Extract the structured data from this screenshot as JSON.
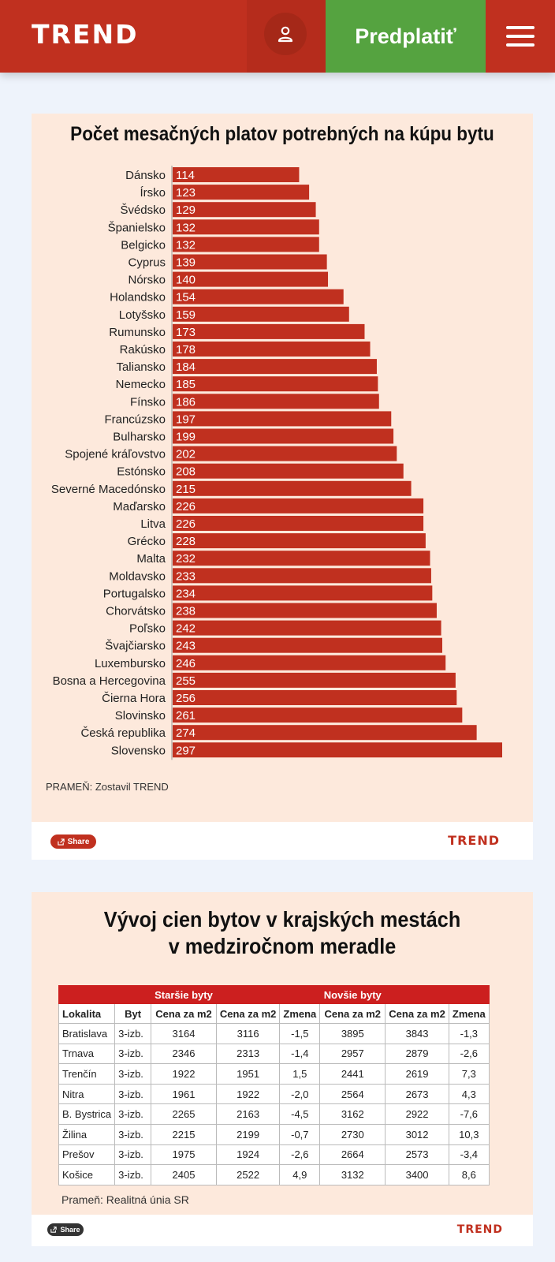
{
  "header": {
    "logo": "TREND",
    "subscribe_label": "Predplatiť",
    "user_icon": "user-icon",
    "menu_icon": "hamburger-menu-icon"
  },
  "colors": {
    "brand_red": "#c0301f",
    "bar_red": "#c0301f",
    "subscribe_green": "#55a340"
  },
  "chart_data": [
    {
      "type": "bar",
      "orientation": "horizontal",
      "title": "Počet mesačných platov potrebných na kúpu bytu",
      "categories": [
        "Dánsko",
        "Írsko",
        "Švédsko",
        "Španielsko",
        "Belgicko",
        "Cyprus",
        "Nórsko",
        "Holandsko",
        "Lotyšsko",
        "Rumunsko",
        "Rakúsko",
        "Taliansko",
        "Nemecko",
        "Fínsko",
        "Francúzsko",
        "Bulharsko",
        "Spojené kráľovstvo",
        "Estónsko",
        "Severné Macedónsko",
        "Maďarsko",
        "Litva",
        "Grécko",
        "Malta",
        "Moldavsko",
        "Portugalsko",
        "Chorvátsko",
        "Poľsko",
        "Švajčiarsko",
        "Luxembursko",
        "Bosna a Hercegovina",
        "Čierna Hora",
        "Slovinsko",
        "Česká republika",
        "Slovensko"
      ],
      "values": [
        114,
        123,
        129,
        132,
        132,
        139,
        140,
        154,
        159,
        173,
        178,
        184,
        185,
        186,
        197,
        199,
        202,
        208,
        215,
        226,
        226,
        228,
        232,
        233,
        234,
        238,
        242,
        243,
        246,
        255,
        256,
        261,
        274,
        297
      ],
      "xlim": [
        0,
        297
      ],
      "source": "PRAMEŇ: Zostavil TREND"
    },
    {
      "type": "table",
      "title_line1": "Vývoj cien bytov v krajských mestách",
      "title_line2": "v medziročnom meradle",
      "group_headers": [
        "Staršie byty",
        "Novšie byty"
      ],
      "columns": [
        "Lokalita",
        "Byt",
        "Cena za m2",
        "Cena za m2",
        "Zmena",
        "Cena za m2",
        "Cena za m2",
        "Zmena"
      ],
      "rows": [
        [
          "Bratislava",
          "3-izb.",
          "3164",
          "3116",
          "-1,5",
          "3895",
          "3843",
          "-1,3"
        ],
        [
          "Trnava",
          "3-izb.",
          "2346",
          "2313",
          "-1,4",
          "2957",
          "2879",
          "-2,6"
        ],
        [
          "Trenčín",
          "3-izb.",
          "1922",
          "1951",
          "1,5",
          "2441",
          "2619",
          "7,3"
        ],
        [
          "Nitra",
          "3-izb.",
          "1961",
          "1922",
          "-2,0",
          "2564",
          "2673",
          "4,3"
        ],
        [
          "B. Bystrica",
          "3-izb.",
          "2265",
          "2163",
          "-4,5",
          "3162",
          "2922",
          "-7,6"
        ],
        [
          "Žilina",
          "3-izb.",
          "2215",
          "2199",
          "-0,7",
          "2730",
          "3012",
          "10,3"
        ],
        [
          "Prešov",
          "3-izb.",
          "1975",
          "1924",
          "-2,6",
          "2664",
          "2573",
          "-3,4"
        ],
        [
          "Košice",
          "3-izb.",
          "2405",
          "2522",
          "4,9",
          "3132",
          "3400",
          "8,6"
        ]
      ],
      "source": "Prameň: Realitná únia SR"
    }
  ],
  "share_label": "Share",
  "footer_logo": "TREND"
}
